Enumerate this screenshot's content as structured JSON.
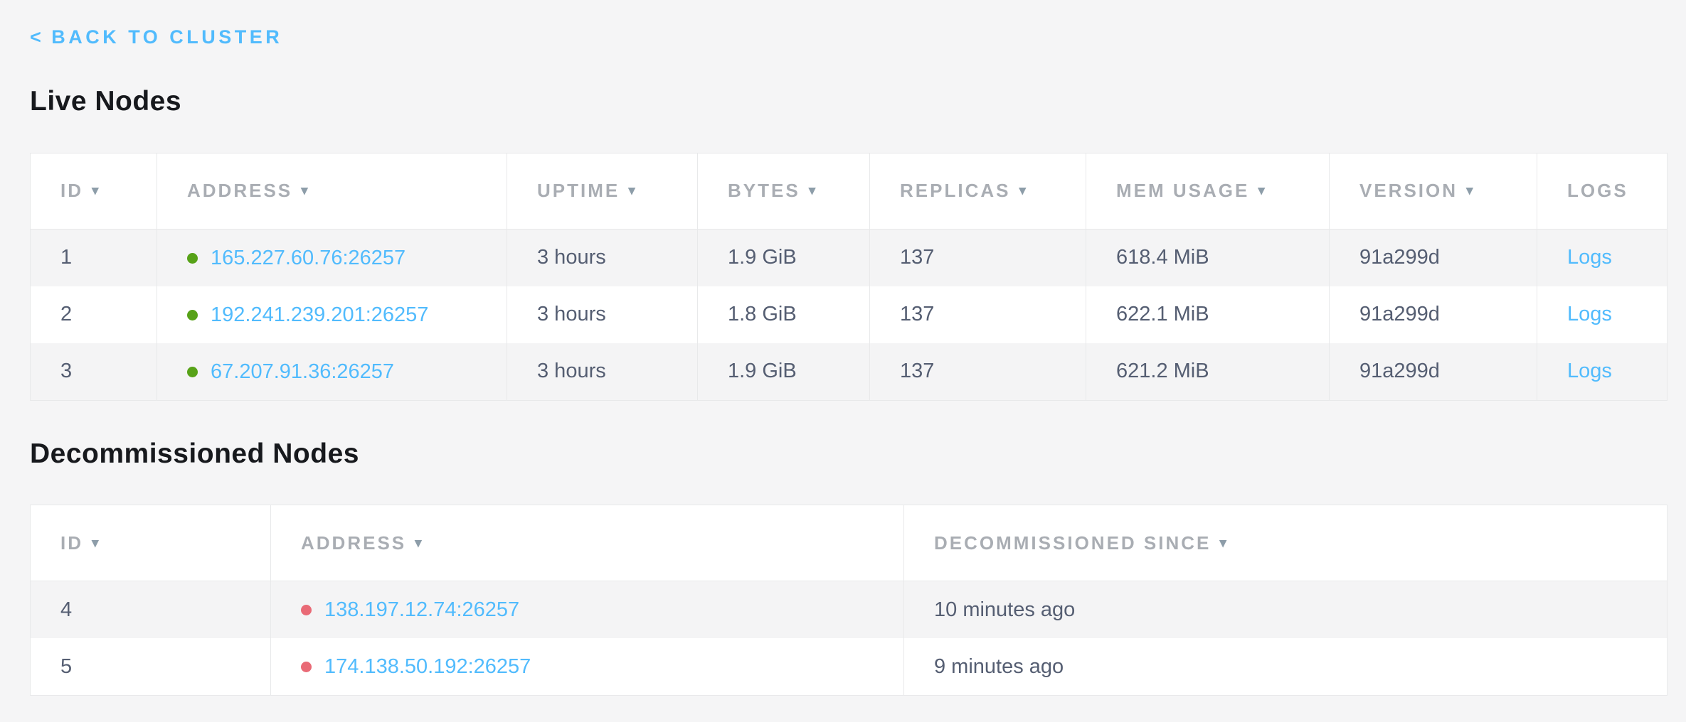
{
  "colors": {
    "accent_blue": "#51BBFD",
    "live_green": "#57A218",
    "decommissioned_red": "#E96A76",
    "page_background": "#F5F5F6"
  },
  "icons": {
    "sort_arrow": "▾",
    "back_chevron": "<"
  },
  "back_link": {
    "label": "BACK TO CLUSTER"
  },
  "live_nodes": {
    "title": "Live Nodes",
    "columns": [
      {
        "label": "ID",
        "sortable": true
      },
      {
        "label": "ADDRESS",
        "sortable": true
      },
      {
        "label": "UPTIME",
        "sortable": true
      },
      {
        "label": "BYTES",
        "sortable": true
      },
      {
        "label": "REPLICAS",
        "sortable": true
      },
      {
        "label": "MEM USAGE",
        "sortable": true
      },
      {
        "label": "VERSION",
        "sortable": true
      },
      {
        "label": "LOGS",
        "sortable": false
      }
    ],
    "rows": [
      {
        "id": "1",
        "status": "live",
        "address": "165.227.60.76:26257",
        "uptime": "3 hours",
        "bytes": "1.9 GiB",
        "replicas": "137",
        "mem_usage": "618.4 MiB",
        "version": "91a299d",
        "logs": "Logs"
      },
      {
        "id": "2",
        "status": "live",
        "address": "192.241.239.201:26257",
        "uptime": "3 hours",
        "bytes": "1.8 GiB",
        "replicas": "137",
        "mem_usage": "622.1 MiB",
        "version": "91a299d",
        "logs": "Logs"
      },
      {
        "id": "3",
        "status": "live",
        "address": "67.207.91.36:26257",
        "uptime": "3 hours",
        "bytes": "1.9 GiB",
        "replicas": "137",
        "mem_usage": "621.2 MiB",
        "version": "91a299d",
        "logs": "Logs"
      }
    ]
  },
  "decommissioned_nodes": {
    "title": "Decommissioned Nodes",
    "columns": [
      {
        "label": "ID",
        "sortable": true
      },
      {
        "label": "ADDRESS",
        "sortable": true
      },
      {
        "label": "DECOMMISSIONED SINCE",
        "sortable": true
      }
    ],
    "rows": [
      {
        "id": "4",
        "status": "decommissioned",
        "address": "138.197.12.74:26257",
        "since": "10 minutes ago"
      },
      {
        "id": "5",
        "status": "decommissioned",
        "address": "174.138.50.192:26257",
        "since": "9 minutes ago"
      }
    ]
  }
}
